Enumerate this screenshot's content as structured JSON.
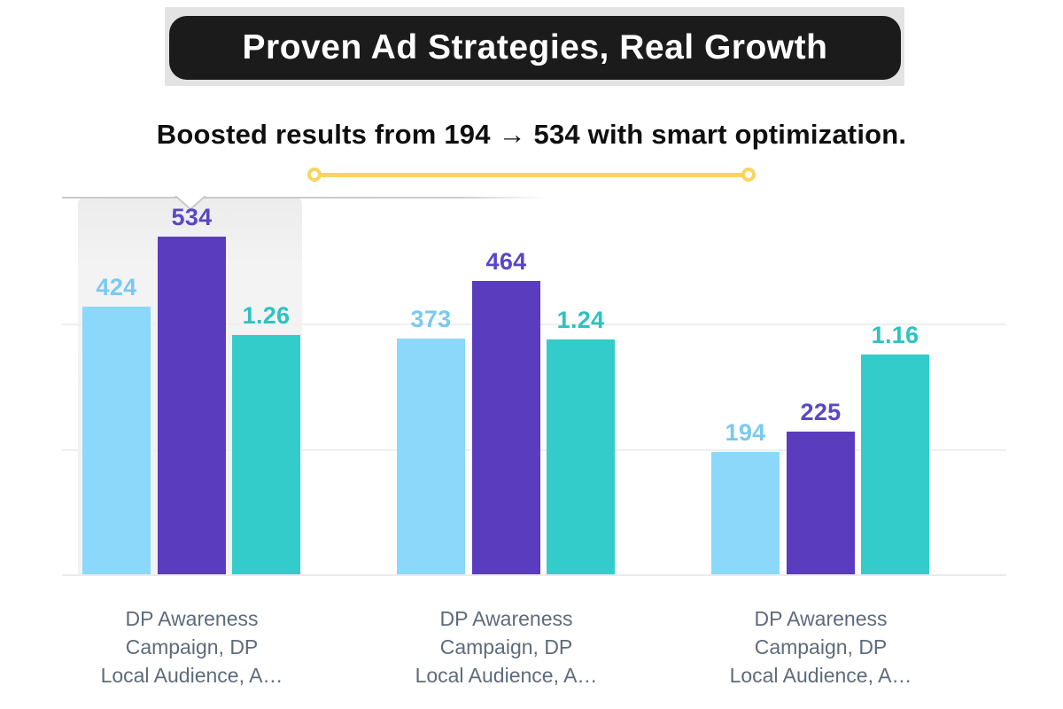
{
  "header": {
    "title": "Proven Ad Strategies, Real Growth",
    "banner_bg": "#1b1b1b",
    "banner_text_color": "#ffffff",
    "strip_bg": "#e3e3e3"
  },
  "subtitle": {
    "text": "Boosted results from 194 → 534 with smart optimization."
  },
  "divider": {
    "color": "#f8d55f"
  },
  "chart_data": {
    "type": "bar",
    "title": "",
    "xlabel": "",
    "ylabel": "",
    "legend": null,
    "grid": true,
    "categories": [
      {
        "lines": [
          "DP Awareness",
          "Campaign, DP",
          "Local Audience, A…"
        ]
      },
      {
        "lines": [
          "DP Awareness",
          "Campaign, DP",
          "Local Audience, A…"
        ]
      },
      {
        "lines": [
          "DP Awareness",
          "Campaign, DP",
          "Local Audience, A…"
        ]
      }
    ],
    "series": [
      {
        "name": "blue-series",
        "axis": "primary",
        "color": "#8bd8fb",
        "label_color": "#79c9f1",
        "values": [
          424,
          373,
          194
        ],
        "labels": [
          "424",
          "373",
          "194"
        ]
      },
      {
        "name": "purple-series",
        "axis": "primary",
        "color": "#5a3cbe",
        "label_color": "#5847c7",
        "values": [
          534,
          464,
          225
        ],
        "labels": [
          "534",
          "464",
          "225"
        ]
      },
      {
        "name": "teal-series",
        "axis": "secondary",
        "color": "#33ccca",
        "label_color": "#2ec2c1",
        "values": [
          1.26,
          1.24,
          1.16
        ],
        "labels": [
          "1.26",
          "1.24",
          "1.16"
        ]
      }
    ],
    "axes": {
      "primary_max": 600,
      "secondary_max": 2.0,
      "gridline_values": [
        200,
        400
      ]
    },
    "highlighted_group": 0
  }
}
